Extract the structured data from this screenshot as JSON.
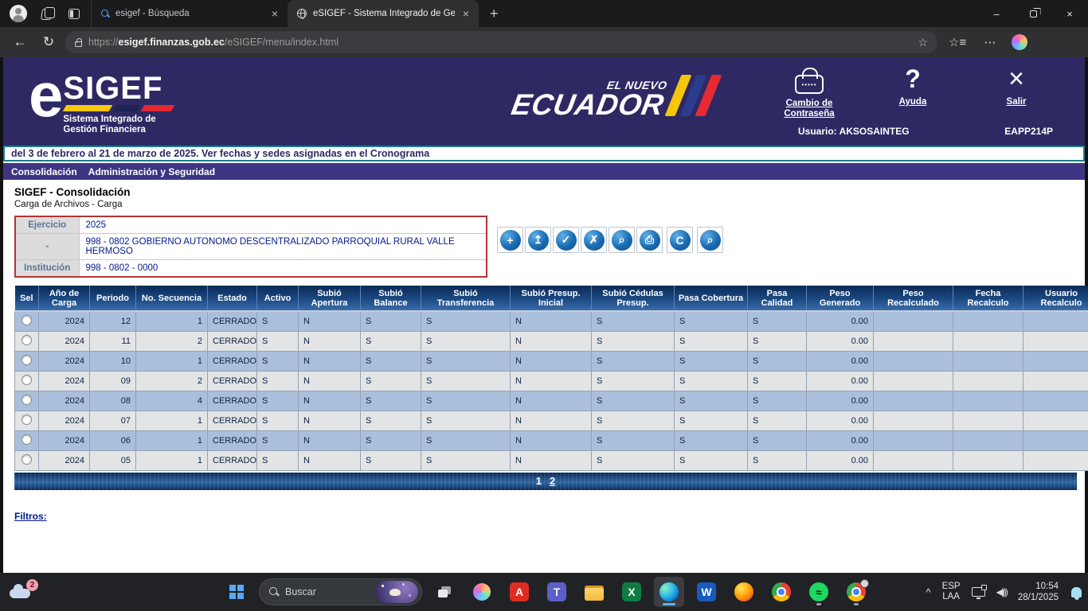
{
  "browser": {
    "tabs": [
      {
        "title": "esigef - Búsqueda",
        "icon": "search-icon",
        "active": false
      },
      {
        "title": "eSIGEF - Sistema Integrado de Ge",
        "icon": "globe-icon",
        "active": true
      }
    ],
    "url": {
      "prefix": "https://",
      "domain": "esigef.finanzas.gob.ec",
      "path": "/eSIGEF/menu/index.html"
    }
  },
  "header": {
    "logo": {
      "e": "e",
      "sigef": "SIGEF",
      "subtitle1": "Sistema Integrado de",
      "subtitle2": "Gestión Financiera"
    },
    "ecuador": {
      "top": "EL NUEVO",
      "main": "ECUADOR"
    },
    "links": {
      "password": "Cambio de Contraseña",
      "help": "Ayuda",
      "exit": "Salir"
    },
    "user": "Usuario: AKSOSAINTEG",
    "terminal": "EAPP214P"
  },
  "marquee": "del 3 de febrero al 21 de marzo de 2025. Ver fechas y sedes asignadas en el Cronograma",
  "menu": [
    "Consolidación",
    "Administración y Seguridad"
  ],
  "page": {
    "title": "SIGEF - Consolidación",
    "subtitle": "Carga de Archivos - Carga"
  },
  "form": {
    "rows": [
      {
        "label": "Ejercicio",
        "value": "2025"
      },
      {
        "label": "-",
        "value": "998 - 0802 GOBIERNO AUTONOMO DESCENTRALIZADO PARROQUIAL RURAL VALLE HERMOSO"
      },
      {
        "label": "Institución",
        "value": "998 - 0802 - 0000"
      }
    ]
  },
  "toolbar": {
    "buttons": [
      {
        "name": "create-record-icon",
        "glyph": "+"
      },
      {
        "name": "save-upload-icon",
        "glyph": "↥"
      },
      {
        "name": "validate-list-icon",
        "glyph": "✓"
      },
      {
        "name": "delete-record-icon",
        "glyph": "✗"
      },
      {
        "name": "preview-search-icon",
        "glyph": "⌕"
      },
      {
        "name": "print-icon",
        "glyph": "⎙"
      },
      {
        "name": "consolidate-check-icon",
        "glyph": "C"
      },
      {
        "name": "web-search-icon",
        "glyph": "⌕"
      }
    ]
  },
  "table": {
    "headers": [
      "Sel",
      "Año de Carga",
      "Periodo",
      "No. Secuencia",
      "Estado",
      "Activo",
      "Subió Apertura",
      "Subió Balance",
      "Subió Transferencia",
      "Subió Presup. Inicial",
      "Subió Cédulas Presup.",
      "Pasa Cobertura",
      "Pasa Calidad",
      "Peso Generado",
      "Peso Recalculado",
      "Fecha Recalculo",
      "Usuario Recalculo"
    ],
    "rows": [
      [
        "2024",
        "12",
        "1",
        "CERRADO",
        "S",
        "N",
        "S",
        "S",
        "N",
        "S",
        "S",
        "S",
        "0.00",
        "",
        "",
        ""
      ],
      [
        "2024",
        "11",
        "2",
        "CERRADO",
        "S",
        "N",
        "S",
        "S",
        "N",
        "S",
        "S",
        "S",
        "0.00",
        "",
        "",
        ""
      ],
      [
        "2024",
        "10",
        "1",
        "CERRADO",
        "S",
        "N",
        "S",
        "S",
        "N",
        "S",
        "S",
        "S",
        "0.00",
        "",
        "",
        ""
      ],
      [
        "2024",
        "09",
        "2",
        "CERRADO",
        "S",
        "N",
        "S",
        "S",
        "N",
        "S",
        "S",
        "S",
        "0.00",
        "",
        "",
        ""
      ],
      [
        "2024",
        "08",
        "4",
        "CERRADO",
        "S",
        "N",
        "S",
        "S",
        "N",
        "S",
        "S",
        "S",
        "0.00",
        "",
        "",
        ""
      ],
      [
        "2024",
        "07",
        "1",
        "CERRADO",
        "S",
        "N",
        "S",
        "S",
        "N",
        "S",
        "S",
        "S",
        "0.00",
        "",
        "",
        ""
      ],
      [
        "2024",
        "06",
        "1",
        "CERRADO",
        "S",
        "N",
        "S",
        "S",
        "N",
        "S",
        "S",
        "S",
        "0.00",
        "",
        "",
        ""
      ],
      [
        "2024",
        "05",
        "1",
        "CERRADO",
        "S",
        "N",
        "S",
        "S",
        "N",
        "S",
        "S",
        "S",
        "0.00",
        "",
        "",
        ""
      ]
    ],
    "pagination": [
      {
        "label": "1",
        "current": true
      },
      {
        "label": "2",
        "current": false
      }
    ],
    "filters_label": "Filtros:"
  },
  "taskbar": {
    "widgets_badge": "2",
    "search_placeholder": "Buscar",
    "apps": [
      {
        "name": "start-button",
        "icon": "start",
        "running": false,
        "active": false
      },
      {
        "name": "task-view-button",
        "icon": "task-view",
        "running": false,
        "active": false
      },
      {
        "name": "copilot-button",
        "icon": "copilot",
        "running": false,
        "active": false
      },
      {
        "name": "acrobat-button",
        "icon": "acrobat",
        "glyph": "A",
        "running": false,
        "active": false
      },
      {
        "name": "teams-button",
        "icon": "teams",
        "glyph": "T",
        "running": false,
        "active": false
      },
      {
        "name": "file-explorer-button",
        "icon": "file-explorer",
        "running": false,
        "active": false
      },
      {
        "name": "excel-button",
        "icon": "excel",
        "glyph": "X",
        "running": false,
        "active": false
      },
      {
        "name": "edge-button",
        "icon": "edge",
        "running": true,
        "active": true
      },
      {
        "name": "word-button",
        "icon": "word",
        "glyph": "W",
        "running": false,
        "active": false
      },
      {
        "name": "firefox-button",
        "icon": "firefox",
        "running": false,
        "active": false
      },
      {
        "name": "chrome-button",
        "icon": "chrome",
        "running": false,
        "active": false
      },
      {
        "name": "spotify-button",
        "icon": "spotify",
        "glyph": "≈",
        "running": true,
        "active": false
      },
      {
        "name": "chrome-profile-button",
        "icon": "chrome",
        "badge": true,
        "running": true,
        "active": false
      }
    ],
    "tray": {
      "lang_line1": "ESP",
      "lang_line2": "LAA",
      "time": "10:54",
      "date": "28/1/2025"
    }
  }
}
